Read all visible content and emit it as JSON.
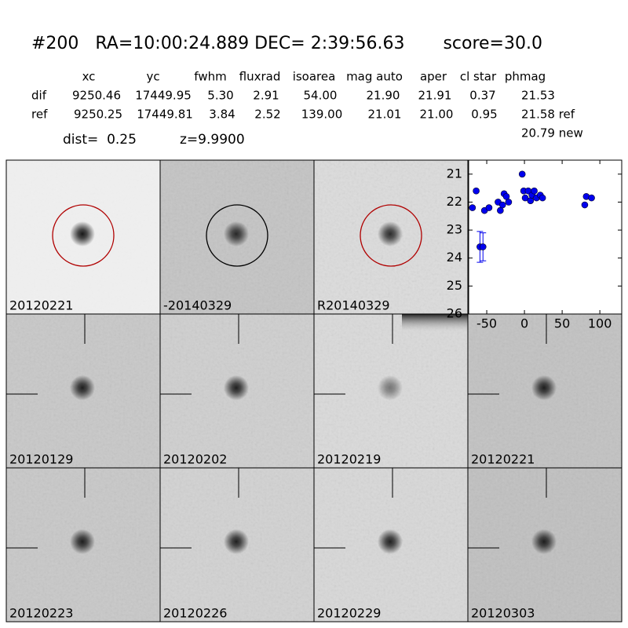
{
  "header": {
    "title": "#200   RA=10:00:24.889 DEC= 2:39:56.63       score=30.0"
  },
  "table": {
    "columns": [
      "xc",
      "yc",
      "fwhm",
      "fluxrad",
      "isoarea",
      "mag auto",
      "aper",
      "cl star",
      "phmag"
    ],
    "rows": [
      [
        "dif",
        "9250.46",
        "17449.95",
        "5.30",
        "2.91",
        "54.00",
        "21.90",
        "21.91",
        "0.37",
        "21.53"
      ],
      [
        "ref",
        "9250.25",
        "17449.81",
        "3.84",
        "2.52",
        "139.00",
        "21.01",
        "21.00",
        "0.95",
        "21.58 ref"
      ]
    ],
    "extra": "20.79 new"
  },
  "dist": "dist=  0.25",
  "z": "z=9.9900",
  "panels": [
    {
      "label": "20120221",
      "circle": "#b00000"
    },
    {
      "label": "-20140329",
      "circle": "#000000"
    },
    {
      "label": "R20140329",
      "circle": "#b00000"
    },
    {
      "label": "20120129"
    },
    {
      "label": "20120202"
    },
    {
      "label": "20120219"
    },
    {
      "label": "20120221",
      "label_color": "#ff0000"
    },
    {
      "label": "20120223"
    },
    {
      "label": "20120226"
    },
    {
      "label": "20120229"
    },
    {
      "label": "20120303"
    }
  ],
  "chart_data": {
    "type": "scatter",
    "color": "#0000ee",
    "x": [
      -69,
      -64,
      -53,
      -47,
      -59,
      -55,
      -35,
      -32,
      -29,
      -27,
      -24,
      -21,
      -3,
      -1,
      1,
      5,
      8,
      10,
      13,
      16,
      21,
      24,
      80,
      82,
      89
    ],
    "values": [
      22.2,
      21.6,
      22.3,
      22.2,
      23.6,
      23.6,
      22.0,
      22.3,
      22.1,
      21.7,
      21.8,
      22.0,
      21.0,
      21.6,
      21.85,
      21.6,
      21.95,
      21.75,
      21.6,
      21.85,
      21.75,
      21.85,
      22.1,
      21.8,
      21.85
    ],
    "errors": [
      null,
      null,
      null,
      null,
      0.55,
      0.5,
      null,
      null,
      null,
      null,
      null,
      null,
      null,
      null,
      null,
      null,
      null,
      null,
      null,
      null,
      null,
      null,
      null,
      null,
      null
    ],
    "xlim": [
      -74,
      129
    ],
    "ylim": [
      20.5,
      26
    ],
    "y_inverted": true,
    "xticks": [
      -50,
      0,
      50,
      100
    ],
    "yticks": [
      21,
      22,
      23,
      24,
      25,
      26
    ]
  }
}
